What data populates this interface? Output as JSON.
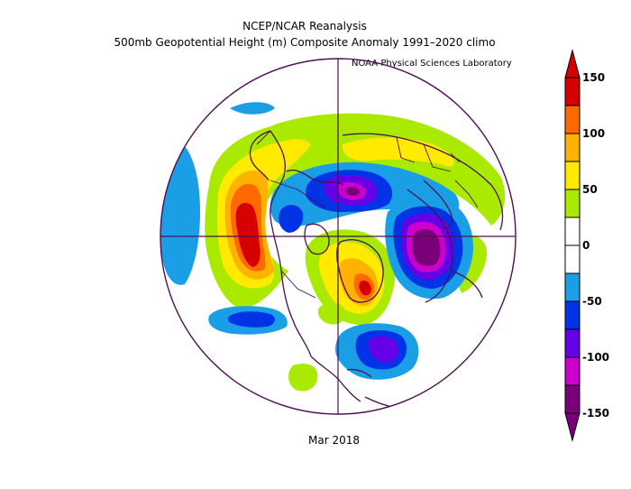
{
  "title": {
    "line1": "NCEP/NCAR Reanalysis",
    "line2": "500mb Geopotential Height (m) Composite Anomaly 1991–2020 climo"
  },
  "credit": "NOAA Physical Sciences Laboratory",
  "period": "Mar 2018",
  "colorbar": {
    "ticks": [
      "150",
      "100",
      "50",
      "0",
      "-50",
      "-100",
      "-150"
    ],
    "colors": [
      "#d60000",
      "#ff6a00",
      "#ffb300",
      "#ffea00",
      "#aaea00",
      "#ffffff",
      "#ffffff",
      "#1a9ee6",
      "#0033e6",
      "#6600e6",
      "#cc00cc",
      "#7a007a"
    ]
  },
  "map": {
    "projection": "north-polar-stereographic",
    "field": "500mb geopotential height anomaly",
    "units": "m"
  }
}
